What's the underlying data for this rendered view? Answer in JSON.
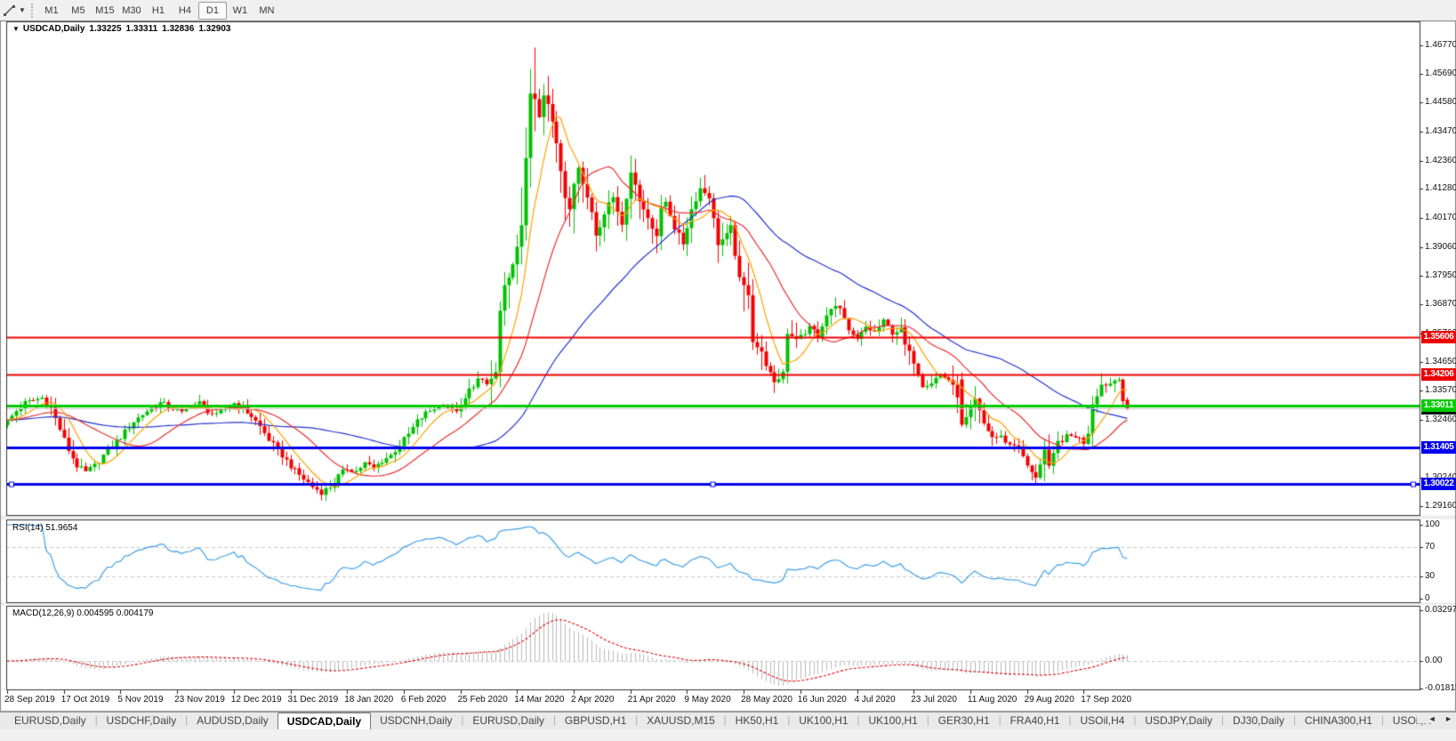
{
  "window": {
    "toolbar": {
      "tool_icon": "trendline-cursor-icon",
      "timeframes": [
        {
          "label": "M1",
          "active": false
        },
        {
          "label": "M5",
          "active": false
        },
        {
          "label": "M15",
          "active": false
        },
        {
          "label": "M30",
          "active": false
        },
        {
          "label": "H1",
          "active": false
        },
        {
          "label": "H4",
          "active": false
        },
        {
          "label": "D1",
          "active": true
        },
        {
          "label": "W1",
          "active": false
        },
        {
          "label": "MN",
          "active": false
        }
      ]
    }
  },
  "chart_data": {
    "type": "candlestick",
    "symbol": "USDCAD",
    "timeframe": "Daily",
    "title": {
      "symbol": "USDCAD,Daily",
      "open": "1.33225",
      "high": "1.33311",
      "low": "1.32836",
      "close": "1.32903"
    },
    "up_color": "#00c000",
    "down_color": "#f20000",
    "n_candles": 258,
    "first_open": 1.3225,
    "noise": 0.0011,
    "close_anchors": [
      [
        0,
        1.324
      ],
      [
        2,
        1.328
      ],
      [
        4,
        1.331
      ],
      [
        6,
        1.332
      ],
      [
        8,
        1.333
      ],
      [
        10,
        1.329
      ],
      [
        12,
        1.321
      ],
      [
        14,
        1.313
      ],
      [
        16,
        1.307
      ],
      [
        18,
        1.3045
      ],
      [
        20,
        1.307
      ],
      [
        23,
        1.313
      ],
      [
        26,
        1.318
      ],
      [
        29,
        1.324
      ],
      [
        32,
        1.328
      ],
      [
        35,
        1.331
      ],
      [
        38,
        1.329
      ],
      [
        40,
        1.327
      ],
      [
        42,
        1.33
      ],
      [
        44,
        1.331
      ],
      [
        46,
        1.328
      ],
      [
        48,
        1.326
      ],
      [
        50,
        1.329
      ],
      [
        52,
        1.331
      ],
      [
        54,
        1.329
      ],
      [
        56,
        1.326
      ],
      [
        58,
        1.322
      ],
      [
        60,
        1.317
      ],
      [
        62,
        1.313
      ],
      [
        64,
        1.309
      ],
      [
        66,
        1.305
      ],
      [
        68,
        1.302
      ],
      [
        70,
        1.299
      ],
      [
        72,
        1.297
      ],
      [
        74,
        1.299
      ],
      [
        76,
        1.303
      ],
      [
        78,
        1.306
      ],
      [
        80,
        1.305
      ],
      [
        82,
        1.308
      ],
      [
        84,
        1.306
      ],
      [
        86,
        1.309
      ],
      [
        88,
        1.311
      ],
      [
        90,
        1.315
      ],
      [
        92,
        1.319
      ],
      [
        94,
        1.324
      ],
      [
        96,
        1.327
      ],
      [
        98,
        1.329
      ],
      [
        100,
        1.331
      ],
      [
        102,
        1.328
      ],
      [
        104,
        1.329
      ],
      [
        106,
        1.336
      ],
      [
        108,
        1.34
      ],
      [
        110,
        1.338
      ],
      [
        112,
        1.3425
      ],
      [
        113,
        1.366
      ],
      [
        114,
        1.375
      ],
      [
        115,
        1.378
      ],
      [
        116,
        1.385
      ],
      [
        117,
        1.39
      ],
      [
        118,
        1.398
      ],
      [
        119,
        1.425
      ],
      [
        120,
        1.45
      ],
      [
        121,
        1.446
      ],
      [
        122,
        1.44
      ],
      [
        123,
        1.448
      ],
      [
        124,
        1.445
      ],
      [
        125,
        1.438
      ],
      [
        126,
        1.43
      ],
      [
        127,
        1.42
      ],
      [
        128,
        1.41
      ],
      [
        129,
        1.406
      ],
      [
        130,
        1.415
      ],
      [
        131,
        1.42
      ],
      [
        132,
        1.415
      ],
      [
        133,
        1.41
      ],
      [
        134,
        1.405
      ],
      [
        135,
        1.396
      ],
      [
        136,
        1.398
      ],
      [
        137,
        1.403
      ],
      [
        138,
        1.408
      ],
      [
        139,
        1.41
      ],
      [
        140,
        1.405
      ],
      [
        141,
        1.4
      ],
      [
        142,
        1.408
      ],
      [
        143,
        1.42
      ],
      [
        144,
        1.415
      ],
      [
        145,
        1.408
      ],
      [
        147,
        1.402
      ],
      [
        149,
        1.395
      ],
      [
        150,
        1.405
      ],
      [
        151,
        1.408
      ],
      [
        153,
        1.398
      ],
      [
        155,
        1.392
      ],
      [
        157,
        1.405
      ],
      [
        159,
        1.413
      ],
      [
        161,
        1.41
      ],
      [
        163,
        1.392
      ],
      [
        165,
        1.395
      ],
      [
        166,
        1.398
      ],
      [
        168,
        1.378
      ],
      [
        170,
        1.373
      ],
      [
        171,
        1.355
      ],
      [
        173,
        1.35
      ],
      [
        175,
        1.342
      ],
      [
        176,
        1.338
      ],
      [
        178,
        1.343
      ],
      [
        179,
        1.358
      ],
      [
        181,
        1.356
      ],
      [
        183,
        1.357
      ],
      [
        184,
        1.361
      ],
      [
        186,
        1.356
      ],
      [
        188,
        1.364
      ],
      [
        189,
        1.368
      ],
      [
        191,
        1.367
      ],
      [
        193,
        1.358
      ],
      [
        195,
        1.355
      ],
      [
        197,
        1.36
      ],
      [
        199,
        1.358
      ],
      [
        201,
        1.362
      ],
      [
        203,
        1.358
      ],
      [
        205,
        1.359
      ],
      [
        206,
        1.353
      ],
      [
        208,
        1.347
      ],
      [
        210,
        1.338
      ],
      [
        212,
        1.339
      ],
      [
        214,
        1.342
      ],
      [
        216,
        1.34
      ],
      [
        218,
        1.334
      ],
      [
        219,
        1.322
      ],
      [
        220,
        1.325
      ],
      [
        222,
        1.332
      ],
      [
        224,
        1.323
      ],
      [
        226,
        1.318
      ],
      [
        228,
        1.318
      ],
      [
        230,
        1.315
      ],
      [
        232,
        1.315
      ],
      [
        233,
        1.31
      ],
      [
        235,
        1.304
      ],
      [
        236,
        1.303
      ],
      [
        238,
        1.313
      ],
      [
        239,
        1.306
      ],
      [
        241,
        1.316
      ],
      [
        243,
        1.318
      ],
      [
        245,
        1.3185
      ],
      [
        247,
        1.316
      ],
      [
        248,
        1.32
      ],
      [
        249,
        1.331
      ],
      [
        251,
        1.338
      ],
      [
        253,
        1.3385
      ],
      [
        255,
        1.341
      ],
      [
        256,
        1.332
      ],
      [
        257,
        1.329
      ]
    ],
    "overrides": {
      "121": {
        "h": 1.4668
      },
      "124": {
        "h": 1.456
      },
      "219": {
        "o": 1.34
      },
      "236": {
        "l": 1.2994
      },
      "257": {
        "o": 1.33225,
        "h": 1.33311,
        "l": 1.32836,
        "c": 1.32903
      }
    },
    "moving_averages": [
      {
        "name": "ma-slow",
        "period": 50,
        "color": "#2233cc"
      },
      {
        "name": "ma-medium",
        "period": 20,
        "color": "#e83030"
      },
      {
        "name": "ma-fast",
        "period": 8,
        "color": "#ffa000"
      }
    ],
    "price_axis": {
      "top": 1.4768,
      "bottom": 1.2882,
      "ticks": [
        "1.46770",
        "1.45690",
        "1.44580",
        "1.43470",
        "1.42360",
        "1.41280",
        "1.40170",
        "1.39060",
        "1.37950",
        "1.36870",
        "1.35760",
        "1.34650",
        "1.33570",
        "1.32460",
        "1.30240",
        "1.29160"
      ]
    },
    "levels": [
      {
        "price": 1.35606,
        "label": "1.35606",
        "color": "#ee0000",
        "width": 2,
        "selected": false
      },
      {
        "price": 1.34206,
        "label": "1.34206",
        "color": "#ee0000",
        "width": 2,
        "selected": false
      },
      {
        "price": 1.33011,
        "label": "1.33011",
        "color": "#00cc00",
        "width": 3,
        "selected": false
      },
      {
        "price": 1.31405,
        "label": "1.31405",
        "color": "#0000ee",
        "width": 3,
        "selected": false
      },
      {
        "price": 1.30022,
        "label": "1.30022",
        "color": "#0000ee",
        "width": 3,
        "selected": true
      }
    ],
    "current_price": {
      "price": 1.32903,
      "label": "1.32903",
      "line_color": "#c8c8c8",
      "box_color": "#111111"
    },
    "date_ticks": [
      {
        "label": "28 Sep 2019",
        "i": 0
      },
      {
        "label": "17 Oct 2019",
        "i": 13
      },
      {
        "label": "5 Nov 2019",
        "i": 26
      },
      {
        "label": "23 Nov 2019",
        "i": 39
      },
      {
        "label": "12 Dec 2019",
        "i": 52
      },
      {
        "label": "31 Dec 2019",
        "i": 65
      },
      {
        "label": "18 Jan 2020",
        "i": 78
      },
      {
        "label": "6 Feb 2020",
        "i": 91
      },
      {
        "label": "25 Feb 2020",
        "i": 104
      },
      {
        "label": "14 Mar 2020",
        "i": 117
      },
      {
        "label": "2 Apr 2020",
        "i": 130
      },
      {
        "label": "21 Apr 2020",
        "i": 143
      },
      {
        "label": "9 May 2020",
        "i": 156
      },
      {
        "label": "28 May 2020",
        "i": 169
      },
      {
        "label": "16 Jun 2020",
        "i": 182
      },
      {
        "label": "4 Jul 2020",
        "i": 195
      },
      {
        "label": "23 Jul 2020",
        "i": 208
      },
      {
        "label": "11 Aug 2020",
        "i": 221
      },
      {
        "label": "29 Aug 2020",
        "i": 234
      },
      {
        "label": "17 Sep 2020",
        "i": 247
      }
    ],
    "rsi": {
      "name": "RSI(14)",
      "value": "51.9654",
      "period": 14,
      "color": "#3f9fe8",
      "dashed_levels": [
        70,
        30
      ],
      "scale": [
        {
          "v": 100,
          "label": "100"
        },
        {
          "v": 70,
          "label": "70"
        },
        {
          "v": 30,
          "label": "30"
        },
        {
          "v": 0,
          "label": "0"
        }
      ]
    },
    "macd": {
      "name": "MACD(12,26,9)",
      "values": "0.004595 0.004179",
      "fast": 12,
      "slow": 26,
      "signal": 9,
      "hist_color": "#b9b9b9",
      "signal_color": "#e00000",
      "scale": [
        {
          "v": 0.032972,
          "label": "0.032972"
        },
        {
          "v": 0,
          "label": "0.00"
        },
        {
          "v": -0.018154,
          "label": "-0.018154"
        }
      ]
    }
  },
  "tabs": {
    "items": [
      {
        "label": "EURUSD,Daily",
        "active": false
      },
      {
        "label": "USDCHF,Daily",
        "active": false
      },
      {
        "label": "AUDUSD,Daily",
        "active": false
      },
      {
        "label": "USDCAD,Daily",
        "active": true
      },
      {
        "label": "USDCNH,Daily",
        "active": false
      },
      {
        "label": "EURUSD,Daily",
        "active": false
      },
      {
        "label": "GBPUSD,H1",
        "active": false
      },
      {
        "label": "XAUUSD,M15",
        "active": false
      },
      {
        "label": "HK50,H1",
        "active": false
      },
      {
        "label": "UK100,H1",
        "active": false
      },
      {
        "label": "UK100,H1",
        "active": false
      },
      {
        "label": "GER30,H1",
        "active": false
      },
      {
        "label": "FRA40,H1",
        "active": false
      },
      {
        "label": "USOil,H4",
        "active": false
      },
      {
        "label": "USDJPY,Daily",
        "active": false
      },
      {
        "label": "DJ30,Daily",
        "active": false
      },
      {
        "label": "CHINA300,H1",
        "active": false
      },
      {
        "label": "USOil,H",
        "active": false
      }
    ],
    "scroll_left": "◄",
    "scroll_right": "►"
  }
}
